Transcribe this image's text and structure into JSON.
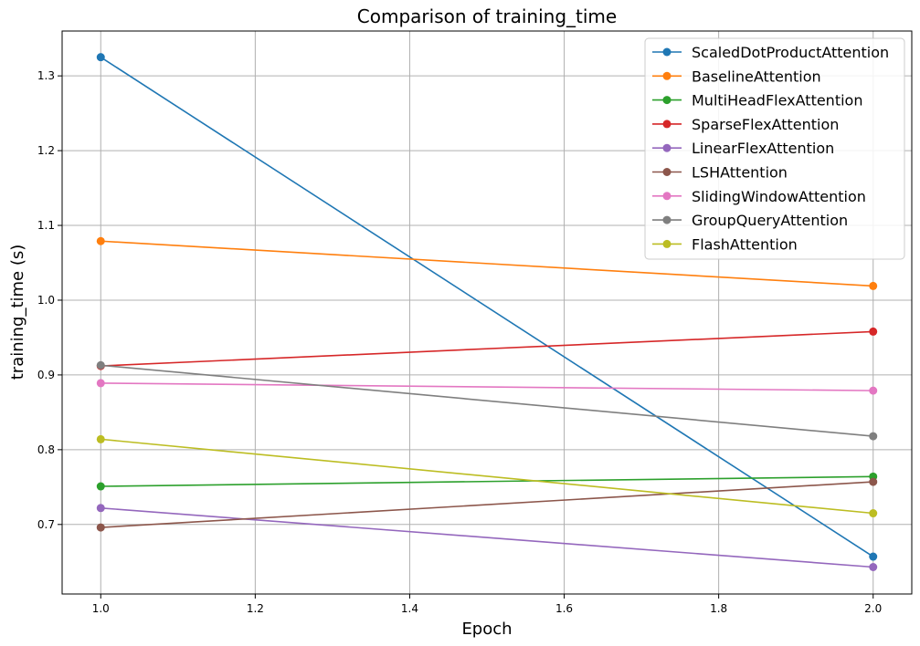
{
  "chart_data": {
    "type": "line",
    "title": "Comparison of training_time",
    "xlabel": "Epoch",
    "ylabel": "training_time (s)",
    "x": [
      1.0,
      2.0
    ],
    "xlim": [
      0.95,
      2.05
    ],
    "ylim": [
      0.607,
      1.36
    ],
    "xticks": [
      "1.0",
      "1.2",
      "1.4",
      "1.6",
      "1.8",
      "2.0"
    ],
    "yticks": [
      "0.7",
      "0.8",
      "0.9",
      "1.0",
      "1.1",
      "1.2",
      "1.3"
    ],
    "grid": true,
    "legend_position": "top-right",
    "series": [
      {
        "name": "ScaledDotProductAttention",
        "color": "#1f77b4",
        "values": [
          1.325,
          0.657
        ]
      },
      {
        "name": "BaselineAttention",
        "color": "#ff7f0e",
        "values": [
          1.079,
          1.019
        ]
      },
      {
        "name": "MultiHeadFlexAttention",
        "color": "#2ca02c",
        "values": [
          0.751,
          0.764
        ]
      },
      {
        "name": "SparseFlexAttention",
        "color": "#d62728",
        "values": [
          0.912,
          0.958
        ]
      },
      {
        "name": "LinearFlexAttention",
        "color": "#9467bd",
        "values": [
          0.722,
          0.643
        ]
      },
      {
        "name": "LSHAttention",
        "color": "#8c564b",
        "values": [
          0.696,
          0.757
        ]
      },
      {
        "name": "SlidingWindowAttention",
        "color": "#e377c2",
        "values": [
          0.889,
          0.879
        ]
      },
      {
        "name": "GroupQueryAttention",
        "color": "#7f7f7f",
        "values": [
          0.913,
          0.818
        ]
      },
      {
        "name": "FlashAttention",
        "color": "#bcbd22",
        "values": [
          0.814,
          0.715
        ]
      }
    ]
  }
}
